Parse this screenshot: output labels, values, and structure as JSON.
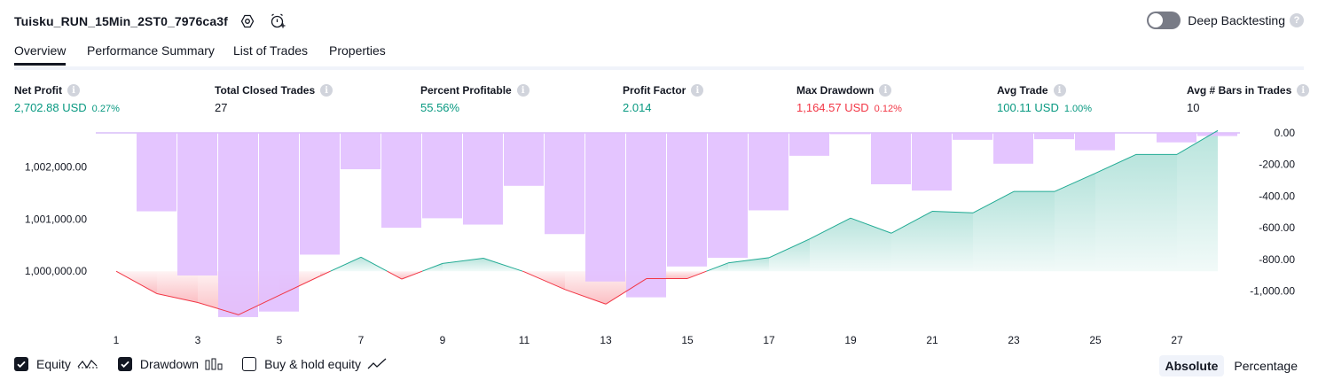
{
  "header": {
    "title": "Tuisku_RUN_15Min_2ST0_7976ca3f",
    "deep_backtesting_label": "Deep Backtesting",
    "help_glyph": "?",
    "deep_backtesting_enabled": false,
    "icons": [
      "settings-icon",
      "add-alert-icon",
      "help-icon"
    ]
  },
  "tabs": [
    {
      "label": "Overview",
      "active": true
    },
    {
      "label": "Performance Summary",
      "active": false
    },
    {
      "label": "List of Trades",
      "active": false
    },
    {
      "label": "Properties",
      "active": false
    }
  ],
  "metrics": [
    {
      "label": "Net Profit",
      "value": "2,702.88 USD",
      "pct": "0.27%",
      "tone": "green"
    },
    {
      "label": "Total Closed Trades",
      "value": "27",
      "pct": "",
      "tone": "dark"
    },
    {
      "label": "Percent Profitable",
      "value": "55.56%",
      "pct": "",
      "tone": "green"
    },
    {
      "label": "Profit Factor",
      "value": "2.014",
      "pct": "",
      "tone": "green"
    },
    {
      "label": "Max Drawdown",
      "value": "1,164.57 USD",
      "pct": "0.12%",
      "tone": "red"
    },
    {
      "label": "Avg Trade",
      "value": "100.11 USD",
      "pct": "1.00%",
      "tone": "green"
    },
    {
      "label": "Avg # Bars in Trades",
      "value": "10",
      "pct": "",
      "tone": "dark"
    }
  ],
  "info_glyph": "i",
  "chart_data": {
    "type": "line",
    "x": [
      1,
      2,
      3,
      4,
      5,
      6,
      7,
      8,
      9,
      10,
      11,
      12,
      13,
      14,
      15,
      16,
      17,
      18,
      19,
      20,
      21,
      22,
      23,
      24,
      25,
      26,
      27,
      28
    ],
    "x_tick_labels": [
      "1",
      "3",
      "5",
      "7",
      "9",
      "11",
      "13",
      "15",
      "17",
      "19",
      "21",
      "23",
      "25",
      "27"
    ],
    "left_axis": {
      "ticks": [
        1000000,
        1001000,
        1002000
      ],
      "tick_labels": [
        "1,000,000.00",
        "1,001,000.00",
        "1,002,000.00"
      ]
    },
    "right_axis": {
      "ticks": [
        0,
        -200,
        -400,
        -600,
        -800,
        -1000
      ],
      "tick_labels": [
        "0.00",
        "-200.00",
        "-400.00",
        "-600.00",
        "-800.00",
        "-1,000.00"
      ]
    },
    "series": [
      {
        "name": "Equity",
        "axis": "left",
        "values": [
          1000000,
          999570,
          999400,
          999165,
          999540,
          999910,
          1000270,
          999850,
          1000150,
          1000250,
          999990,
          999650,
          999370,
          999860,
          999860,
          1000160,
          1000260,
          1000620,
          1001020,
          1000730,
          1001150,
          1001120,
          1001530,
          1001530,
          1001880,
          1002240,
          1002240,
          1002700
        ]
      },
      {
        "name": "Drawdown",
        "axis": "right",
        "values": [
          0,
          -496,
          -902,
          -1165,
          -1130,
          -770,
          -230,
          -600,
          -540,
          -580,
          -335,
          -640,
          -940,
          -1040,
          -845,
          -790,
          -490,
          -145,
          -8,
          -325,
          -365,
          -44,
          -195,
          -40,
          -110,
          0,
          -60,
          -20
        ]
      }
    ],
    "colors": {
      "equity_up": "#22ab94",
      "equity_down": "#f23645",
      "drawdown_bar": "#e1bfff",
      "drawdown_bar_line": "#c59cf5"
    }
  },
  "legend": [
    {
      "label": "Equity",
      "checked": true,
      "icon": "equity-line-icon"
    },
    {
      "label": "Drawdown",
      "checked": true,
      "icon": "drawdown-bars-icon"
    },
    {
      "label": "Buy & hold equity",
      "checked": false,
      "icon": "buy-hold-line-icon"
    }
  ],
  "modes": [
    {
      "label": "Absolute",
      "active": true
    },
    {
      "label": "Percentage",
      "active": false
    }
  ]
}
